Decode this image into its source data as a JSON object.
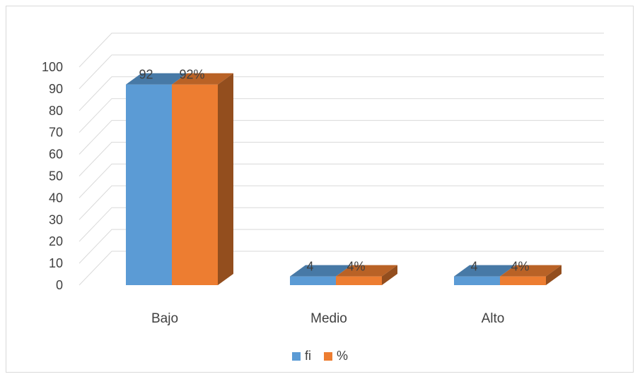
{
  "chart_data": {
    "type": "bar",
    "categories": [
      "Bajo",
      "Medio",
      "Alto"
    ],
    "series": [
      {
        "name": "fi",
        "values": [
          92,
          4,
          4
        ],
        "labels": [
          "92",
          "4",
          "4"
        ],
        "color": "#5B9BD5"
      },
      {
        "name": "%",
        "values": [
          92,
          4,
          4
        ],
        "labels": [
          "92%",
          "4%",
          "4%"
        ],
        "color": "#ED7D31"
      }
    ],
    "ylim": [
      0,
      100
    ],
    "yticks": [
      "0",
      "10",
      "20",
      "30",
      "40",
      "50",
      "60",
      "70",
      "80",
      "90",
      "100"
    ],
    "grid": true,
    "legend_position": "bottom",
    "style": "3d-clustered-column"
  }
}
